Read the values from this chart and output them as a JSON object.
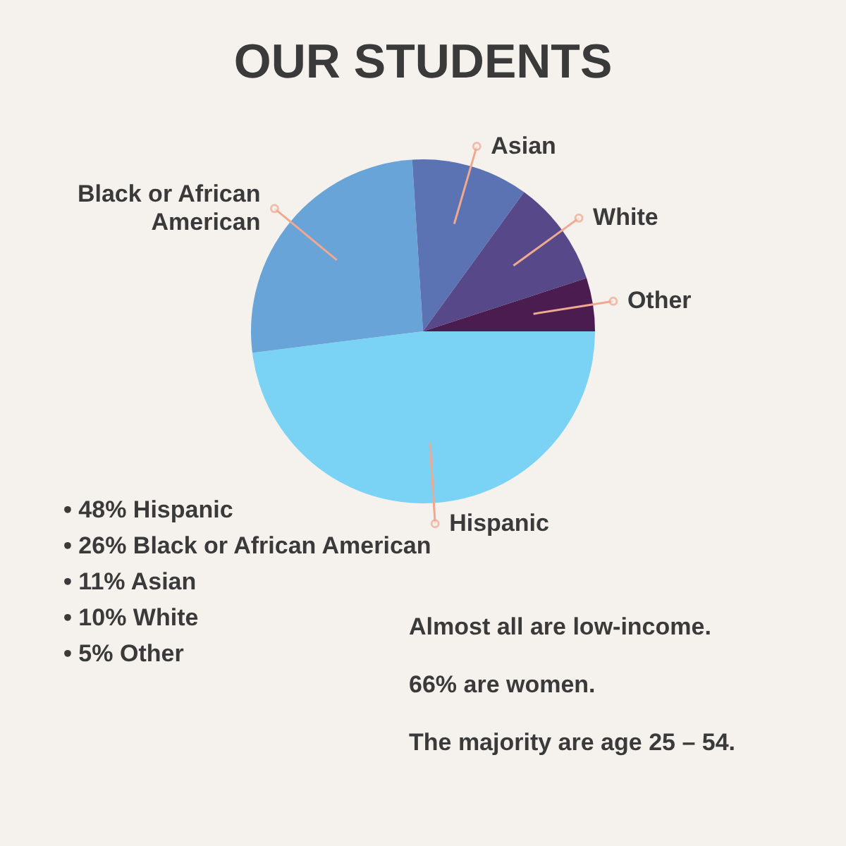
{
  "chart_data": {
    "type": "pie",
    "title": "OUR STUDENTS",
    "categories": [
      "Hispanic",
      "Black or African American",
      "Asian",
      "White",
      "Other"
    ],
    "values": [
      48,
      26,
      11,
      10,
      5
    ],
    "colors": [
      "#7ad3f5",
      "#68a4d8",
      "#5b73b3",
      "#57488a",
      "#4a1c50"
    ],
    "legend": false,
    "annotations": [
      "• 48% Hispanic",
      "• 26% Black or African American",
      "• 11% Asian",
      "• 10% White",
      "• 5% Other",
      "Almost all are low-income.",
      "66% are women.",
      "The majority are age 25 – 54."
    ]
  }
}
